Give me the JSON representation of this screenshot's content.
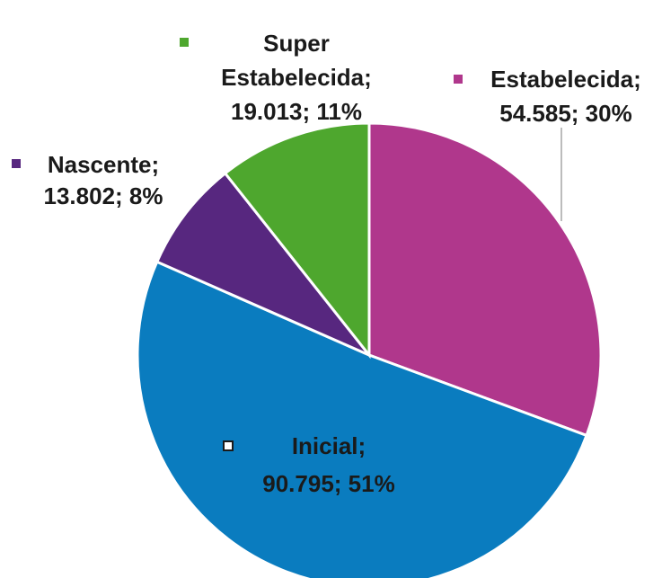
{
  "chart_data": {
    "type": "pie",
    "values": [
      54585,
      90795,
      13802,
      19013
    ],
    "value_labels": [
      [
        "Estabelecida;",
        "54.585; 30%"
      ],
      [
        "Inicial;",
        "90.795; 51%"
      ],
      [
        "Nascente;",
        "13.802; 8%"
      ],
      [
        "Super",
        "Estabelecida;",
        "19.013; 11%"
      ]
    ],
    "colors": [
      "#b0378c",
      "#0a7cbf",
      "#57277f",
      "#4ea72e"
    ]
  }
}
